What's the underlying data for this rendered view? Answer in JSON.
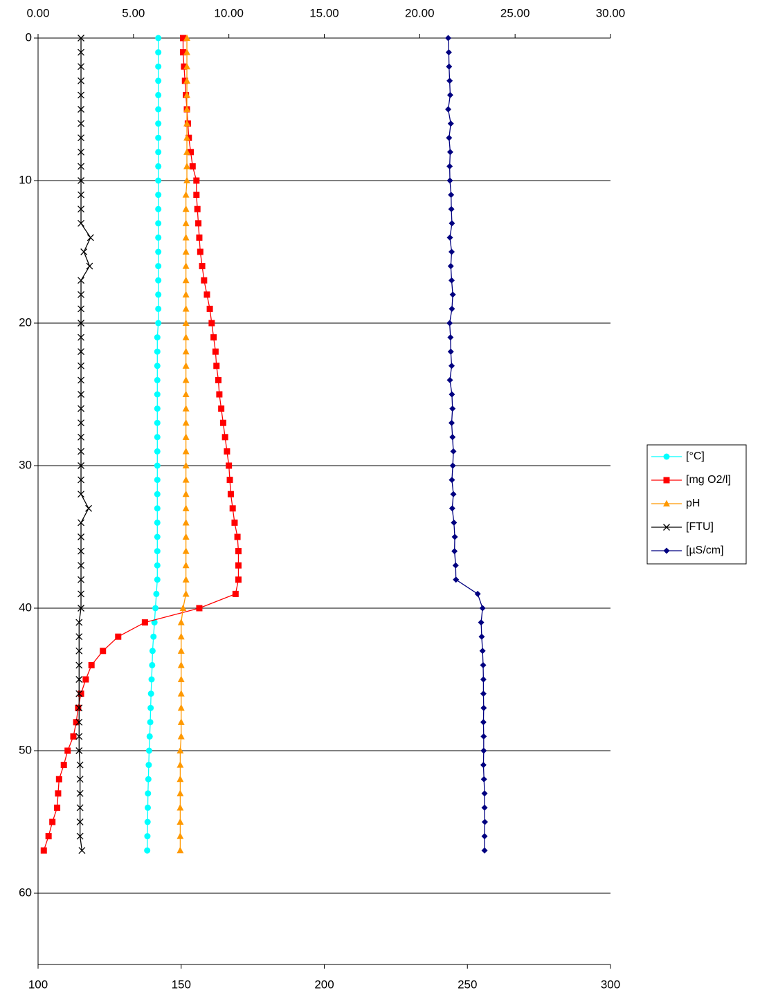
{
  "chart_data": {
    "type": "line",
    "depth": [
      0,
      1,
      2,
      3,
      4,
      5,
      6,
      7,
      8,
      9,
      10,
      11,
      12,
      13,
      14,
      15,
      16,
      17,
      18,
      19,
      20,
      21,
      22,
      23,
      24,
      25,
      26,
      27,
      28,
      29,
      30,
      31,
      32,
      33,
      34,
      35,
      36,
      37,
      38,
      39,
      40,
      41,
      42,
      43,
      44,
      45,
      46,
      47,
      48,
      49,
      50,
      51,
      52,
      53,
      54,
      55,
      56,
      57
    ],
    "xlim": [
      0,
      30
    ],
    "xticks": [
      {
        "value": 0,
        "label": "0.00"
      },
      {
        "value": 5,
        "label": "5.00"
      },
      {
        "value": 10,
        "label": "10.00"
      },
      {
        "value": 15,
        "label": "15.00"
      },
      {
        "value": 20,
        "label": "20.00"
      },
      {
        "value": 25,
        "label": "25.00"
      },
      {
        "value": 30,
        "label": "30.00"
      }
    ],
    "x2lim": [
      100,
      300
    ],
    "x2ticks": [
      100,
      150,
      200,
      250,
      300
    ],
    "ylim": [
      0,
      65
    ],
    "inverted": true,
    "yticks": [
      0,
      10,
      20,
      30,
      40,
      50,
      60
    ],
    "grid": true,
    "legend": "right",
    "series": [
      {
        "name": "[°C]",
        "color": "#00ffff",
        "marker": "circle",
        "axis": "x",
        "values": [
          6.3,
          6.3,
          6.3,
          6.3,
          6.3,
          6.3,
          6.3,
          6.3,
          6.3,
          6.3,
          6.3,
          6.3,
          6.3,
          6.3,
          6.3,
          6.3,
          6.3,
          6.3,
          6.3,
          6.3,
          6.3,
          6.25,
          6.25,
          6.25,
          6.25,
          6.25,
          6.25,
          6.25,
          6.25,
          6.25,
          6.25,
          6.25,
          6.25,
          6.25,
          6.25,
          6.25,
          6.25,
          6.25,
          6.25,
          6.2,
          6.15,
          6.1,
          6.05,
          6.0,
          5.98,
          5.95,
          5.92,
          5.9,
          5.88,
          5.85,
          5.82,
          5.8,
          5.78,
          5.76,
          5.75,
          5.74,
          5.73,
          5.72
        ]
      },
      {
        "name": "[mg O2/l]",
        "color": "#ff0000",
        "marker": "square",
        "axis": "x",
        "values": [
          7.6,
          7.6,
          7.65,
          7.7,
          7.75,
          7.8,
          7.85,
          7.9,
          8.0,
          8.1,
          8.3,
          8.3,
          8.35,
          8.4,
          8.45,
          8.5,
          8.6,
          8.7,
          8.85,
          9.0,
          9.1,
          9.2,
          9.3,
          9.35,
          9.45,
          9.5,
          9.6,
          9.7,
          9.8,
          9.9,
          10.0,
          10.05,
          10.1,
          10.2,
          10.3,
          10.45,
          10.5,
          10.5,
          10.5,
          10.35,
          8.45,
          5.6,
          4.2,
          3.4,
          2.8,
          2.5,
          2.25,
          2.1,
          2.0,
          1.85,
          1.55,
          1.35,
          1.1,
          1.05,
          1.0,
          0.75,
          0.55,
          0.3
        ]
      },
      {
        "name": "pH",
        "color": "#ff9900",
        "marker": "triangle",
        "axis": "x",
        "values": [
          7.8,
          7.8,
          7.8,
          7.8,
          7.8,
          7.8,
          7.8,
          7.8,
          7.8,
          7.8,
          7.8,
          7.75,
          7.75,
          7.75,
          7.75,
          7.75,
          7.75,
          7.75,
          7.75,
          7.75,
          7.75,
          7.75,
          7.75,
          7.75,
          7.75,
          7.75,
          7.75,
          7.75,
          7.75,
          7.75,
          7.75,
          7.75,
          7.75,
          7.75,
          7.75,
          7.75,
          7.75,
          7.75,
          7.75,
          7.75,
          7.6,
          7.5,
          7.5,
          7.5,
          7.5,
          7.5,
          7.5,
          7.5,
          7.5,
          7.5,
          7.45,
          7.45,
          7.45,
          7.45,
          7.45,
          7.45,
          7.45,
          7.45
        ]
      },
      {
        "name": "[FTU]",
        "color": "#000000",
        "marker": "x",
        "axis": "x",
        "values": [
          2.25,
          2.25,
          2.25,
          2.25,
          2.25,
          2.25,
          2.25,
          2.25,
          2.25,
          2.25,
          2.25,
          2.25,
          2.25,
          2.25,
          2.75,
          2.4,
          2.7,
          2.25,
          2.25,
          2.25,
          2.25,
          2.25,
          2.25,
          2.25,
          2.25,
          2.25,
          2.25,
          2.25,
          2.25,
          2.25,
          2.25,
          2.25,
          2.25,
          2.65,
          2.25,
          2.25,
          2.25,
          2.25,
          2.25,
          2.25,
          2.25,
          2.15,
          2.15,
          2.15,
          2.15,
          2.15,
          2.15,
          2.15,
          2.15,
          2.15,
          2.15,
          2.2,
          2.2,
          2.2,
          2.2,
          2.2,
          2.2,
          2.3
        ]
      },
      {
        "name": "[µS/cm]",
        "color": "#000080",
        "marker": "diamond",
        "axis": "x2",
        "values": [
          243.3,
          243.5,
          243.6,
          243.8,
          244.0,
          243.3,
          244.2,
          243.6,
          244.0,
          243.8,
          243.9,
          244.3,
          244.4,
          244.6,
          243.9,
          244.5,
          244.2,
          244.5,
          244.9,
          244.6,
          243.8,
          244.1,
          244.2,
          244.5,
          243.9,
          244.6,
          244.8,
          244.5,
          244.8,
          245.1,
          244.9,
          244.6,
          245.1,
          244.7,
          245.3,
          245.6,
          245.5,
          245.9,
          246.0,
          253.6,
          255.3,
          254.8,
          255.0,
          255.3,
          255.5,
          255.6,
          255.6,
          255.7,
          255.6,
          255.7,
          255.7,
          255.6,
          255.8,
          256.0,
          256.0,
          256.1,
          256.0,
          256.0
        ]
      }
    ]
  }
}
